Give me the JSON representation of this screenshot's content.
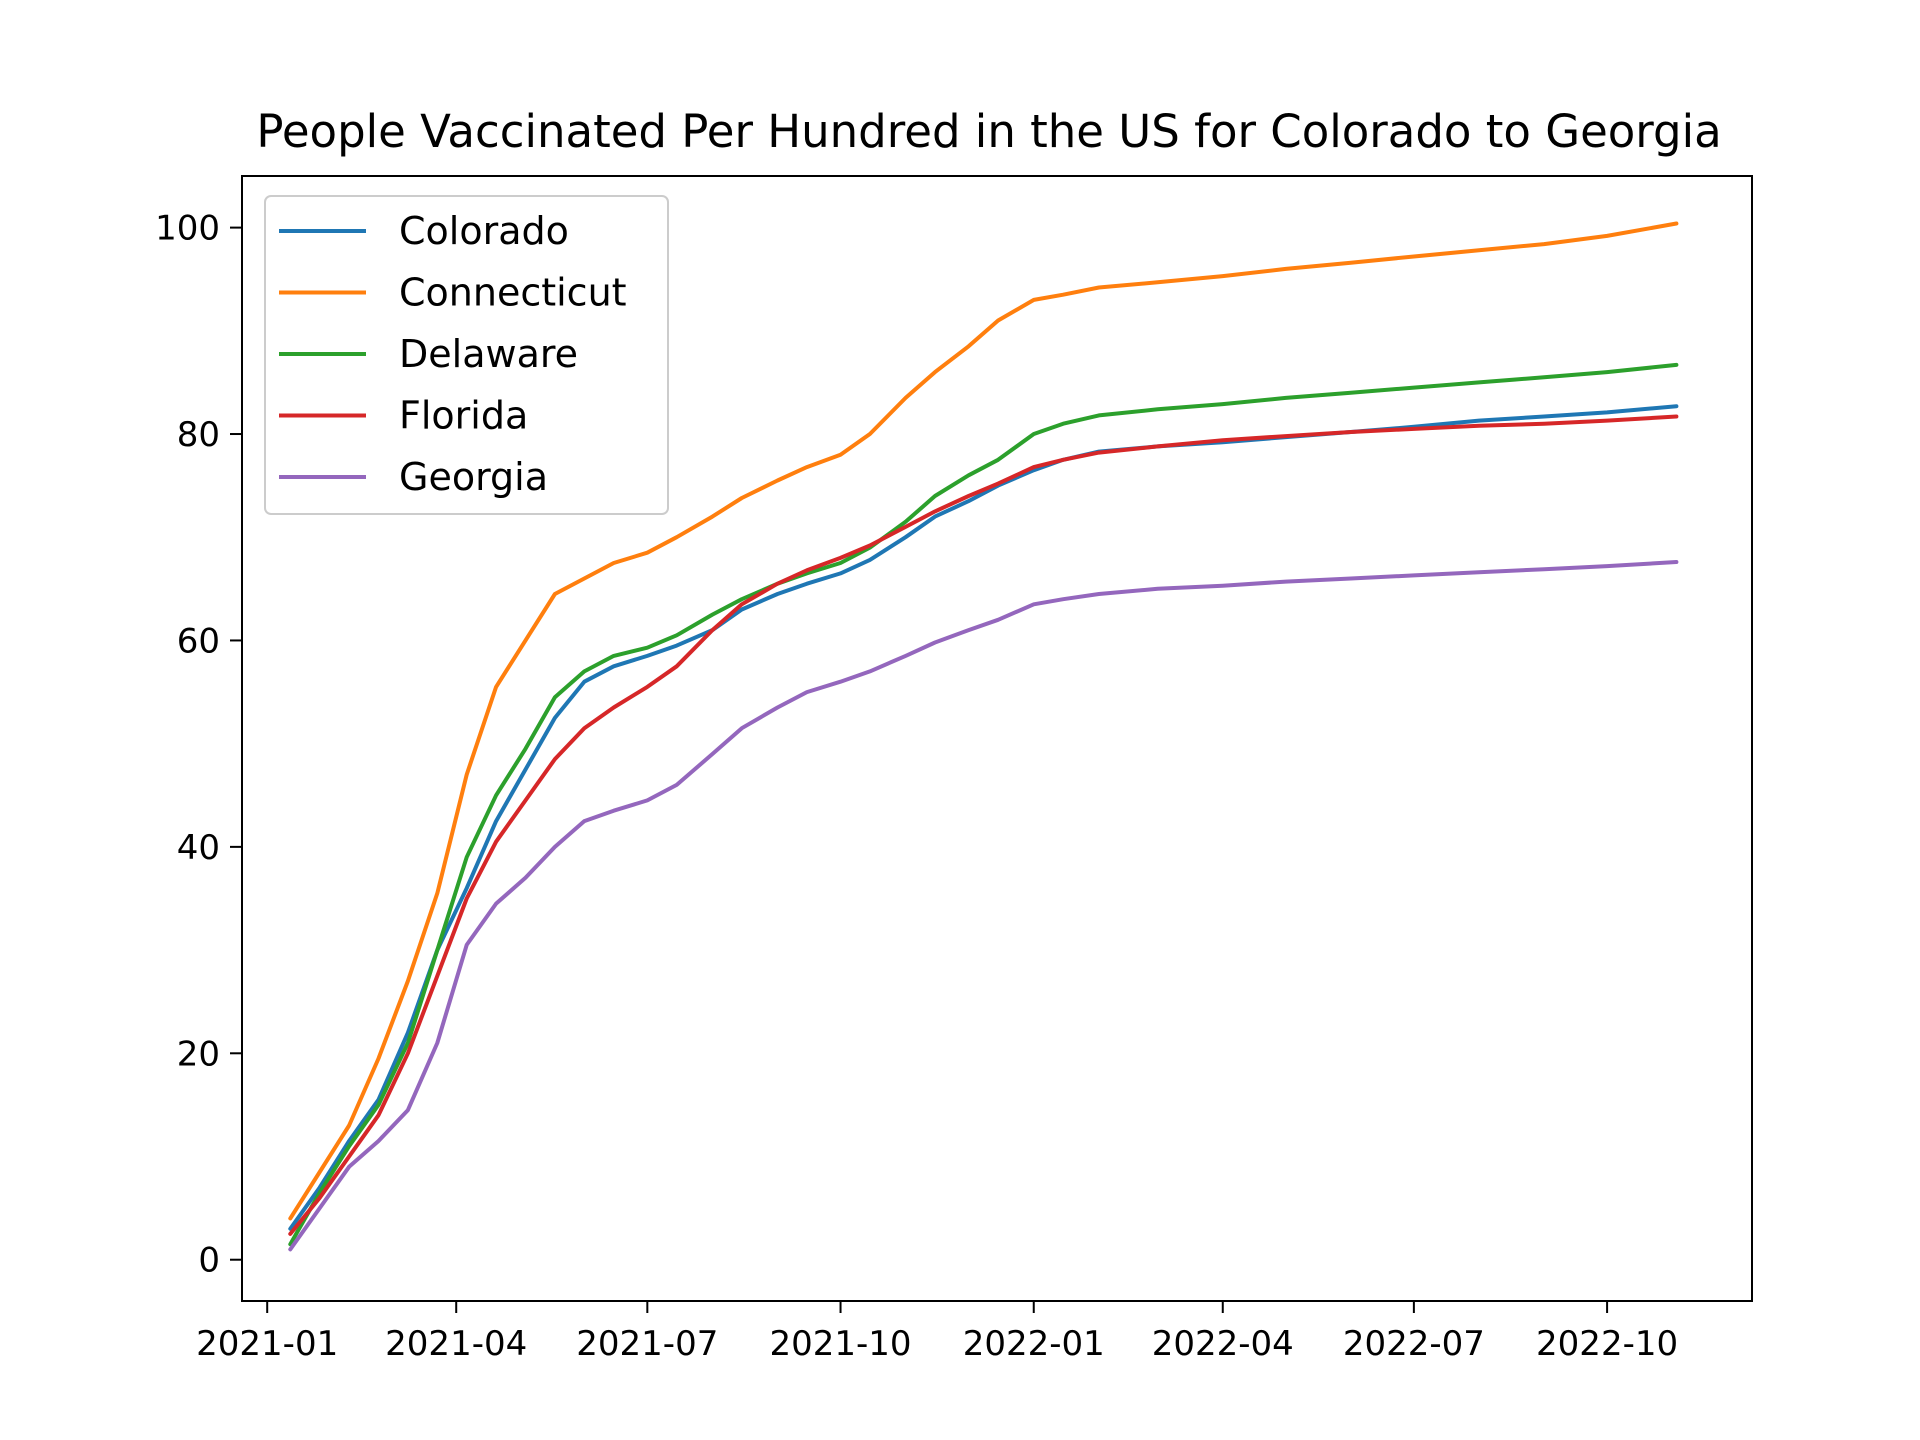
{
  "chart_data": {
    "type": "line",
    "title": "People Vaccinated Per Hundred in the US for Colorado to Georgia",
    "xlabel": "",
    "ylabel": "",
    "xlim": [
      "2020-12-20",
      "2022-12-09"
    ],
    "ylim": [
      -4,
      105
    ],
    "x_ticks": [
      "2021-01",
      "2021-04",
      "2021-07",
      "2021-10",
      "2022-01",
      "2022-04",
      "2022-07",
      "2022-10"
    ],
    "x_tick_dates": [
      "2021-01-01",
      "2021-04-01",
      "2021-07-01",
      "2021-10-01",
      "2022-01-01",
      "2022-04-01",
      "2022-07-01",
      "2022-10-01"
    ],
    "y_ticks": [
      0,
      20,
      40,
      60,
      80,
      100
    ],
    "grid": false,
    "legend_position": "upper-left",
    "x": [
      "2021-01-12",
      "2021-01-26",
      "2021-02-09",
      "2021-02-23",
      "2021-03-09",
      "2021-03-23",
      "2021-04-06",
      "2021-04-20",
      "2021-05-04",
      "2021-05-18",
      "2021-06-01",
      "2021-06-15",
      "2021-07-01",
      "2021-07-15",
      "2021-08-01",
      "2021-08-15",
      "2021-09-01",
      "2021-09-15",
      "2021-10-01",
      "2021-10-15",
      "2021-11-01",
      "2021-11-15",
      "2021-12-01",
      "2021-12-15",
      "2022-01-01",
      "2022-01-15",
      "2022-02-01",
      "2022-03-01",
      "2022-04-01",
      "2022-05-01",
      "2022-06-01",
      "2022-07-01",
      "2022-08-01",
      "2022-09-01",
      "2022-10-01",
      "2022-11-03"
    ],
    "series": [
      {
        "name": "Colorado",
        "color": "#1f77b4",
        "values": [
          3.0,
          7.0,
          11.5,
          15.5,
          22.0,
          30.0,
          36.0,
          42.5,
          47.5,
          52.5,
          56.0,
          57.5,
          58.5,
          59.5,
          61.0,
          63.0,
          64.5,
          65.5,
          66.5,
          67.8,
          70.0,
          72.0,
          73.5,
          75.0,
          76.5,
          77.5,
          78.3,
          78.8,
          79.2,
          79.7,
          80.2,
          80.7,
          81.3,
          81.7,
          82.1,
          82.7
        ]
      },
      {
        "name": "Connecticut",
        "color": "#ff7f0e",
        "values": [
          4.0,
          8.5,
          13.0,
          19.5,
          27.0,
          35.5,
          47.0,
          55.5,
          60.0,
          64.5,
          66.0,
          67.5,
          68.5,
          70.0,
          72.0,
          73.8,
          75.5,
          76.8,
          78.0,
          80.0,
          83.5,
          86.0,
          88.5,
          91.0,
          93.0,
          93.5,
          94.2,
          94.7,
          95.3,
          96.0,
          96.6,
          97.2,
          97.8,
          98.4,
          99.2,
          100.4
        ]
      },
      {
        "name": "Delaware",
        "color": "#2ca02c",
        "values": [
          1.5,
          6.5,
          11.0,
          15.0,
          21.0,
          30.0,
          39.0,
          45.0,
          49.5,
          54.5,
          57.0,
          58.5,
          59.3,
          60.5,
          62.5,
          64.0,
          65.5,
          66.5,
          67.5,
          69.0,
          71.5,
          74.0,
          76.0,
          77.5,
          80.0,
          81.0,
          81.8,
          82.4,
          82.9,
          83.5,
          84.0,
          84.5,
          85.0,
          85.5,
          86.0,
          86.7
        ]
      },
      {
        "name": "Florida",
        "color": "#d62728",
        "values": [
          2.5,
          6.0,
          10.0,
          14.0,
          20.0,
          27.5,
          35.0,
          40.5,
          44.5,
          48.5,
          51.5,
          53.5,
          55.5,
          57.5,
          61.0,
          63.5,
          65.5,
          66.8,
          68.0,
          69.2,
          71.0,
          72.5,
          74.0,
          75.2,
          76.8,
          77.5,
          78.2,
          78.8,
          79.4,
          79.8,
          80.2,
          80.5,
          80.8,
          81.0,
          81.3,
          81.7
        ]
      },
      {
        "name": "Georgia",
        "color": "#9467bd",
        "values": [
          1.0,
          5.0,
          9.0,
          11.5,
          14.5,
          21.0,
          30.5,
          34.5,
          37.0,
          40.0,
          42.5,
          43.5,
          44.5,
          46.0,
          49.0,
          51.5,
          53.5,
          55.0,
          56.0,
          57.0,
          58.5,
          59.8,
          61.0,
          62.0,
          63.5,
          64.0,
          64.5,
          65.0,
          65.3,
          65.7,
          66.0,
          66.3,
          66.6,
          66.9,
          67.2,
          67.6
        ]
      }
    ]
  }
}
